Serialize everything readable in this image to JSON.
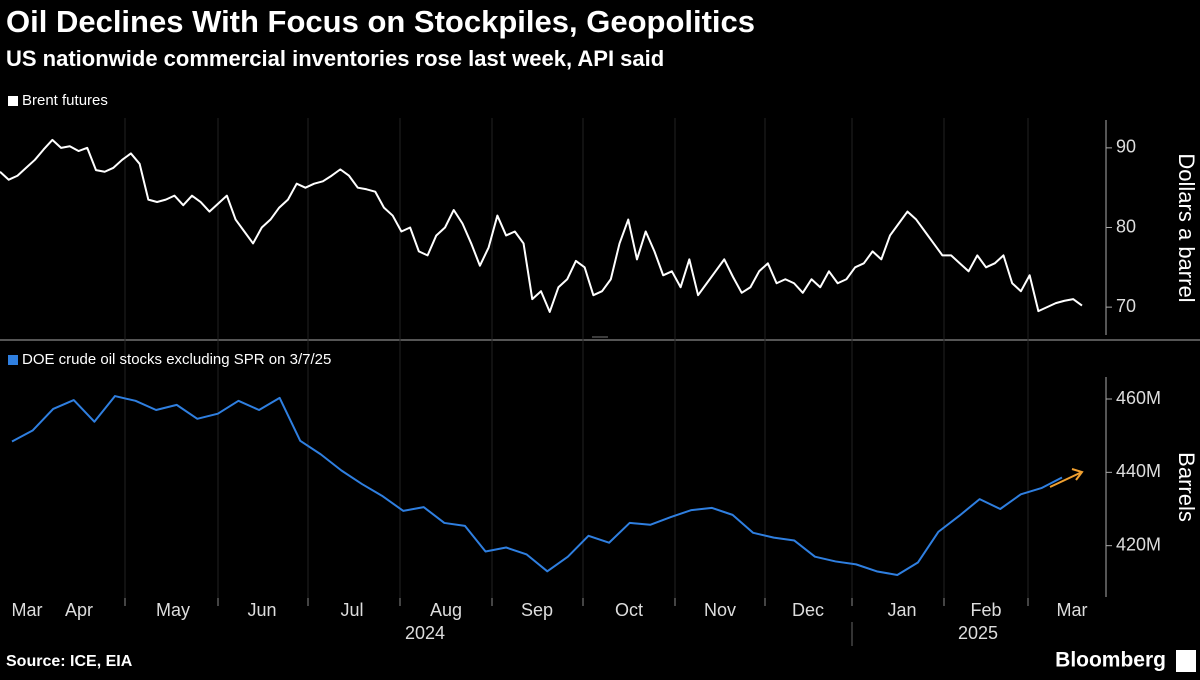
{
  "title": "Oil Declines With Focus on Stockpiles, Geopolitics",
  "subtitle": "US nationwide commercial inventories rose last week, API said",
  "x_axis": {
    "months": [
      "Mar",
      "Apr",
      "May",
      "Jun",
      "Jul",
      "Aug",
      "Sep",
      "Oct",
      "Nov",
      "Dec",
      "Jan",
      "Feb",
      "Mar"
    ],
    "years": [
      "2024",
      "2025"
    ]
  },
  "source": "Source: ICE, EIA",
  "brand": "Bloomberg",
  "chart_data": [
    {
      "type": "line",
      "y_label": "Dollars a barrel",
      "series": [
        {
          "name": "Brent futures",
          "color": "#ffffff",
          "values": [
            87.0,
            86.0,
            86.5,
            87.5,
            88.5,
            89.8,
            91.0,
            90.0,
            90.2,
            89.6,
            90.0,
            87.2,
            87.0,
            87.5,
            88.5,
            89.3,
            88.0,
            83.5,
            83.2,
            83.5,
            84.0,
            82.8,
            84.0,
            83.2,
            82.0,
            83.0,
            84.0,
            81.0,
            79.5,
            78.0,
            80.0,
            81.0,
            82.5,
            83.5,
            85.5,
            85.0,
            85.5,
            85.8,
            86.5,
            87.3,
            86.5,
            85.0,
            84.8,
            84.5,
            82.5,
            81.5,
            79.5,
            80.0,
            77.0,
            76.5,
            79.0,
            80.0,
            82.2,
            80.5,
            78.0,
            75.2,
            77.5,
            81.5,
            79.0,
            79.5,
            78.0,
            71.0,
            72.0,
            69.4,
            72.5,
            73.5,
            75.8,
            75.0,
            71.5,
            72.0,
            73.5,
            78.0,
            81.0,
            76.0,
            79.5,
            77.0,
            74.0,
            74.5,
            72.5,
            76.0,
            71.5,
            73.0,
            74.5,
            76.0,
            73.8,
            71.8,
            72.5,
            74.5,
            75.5,
            73.0,
            73.5,
            73.0,
            71.8,
            73.5,
            72.5,
            74.5,
            73.0,
            73.5,
            75.0,
            75.5,
            77.0,
            76.0,
            79.0,
            80.5,
            82.0,
            81.0,
            79.5,
            78.0,
            76.5,
            76.5,
            75.5,
            74.5,
            76.5,
            75.0,
            75.5,
            76.5,
            73.0,
            72.0,
            74.0,
            69.5,
            70.0,
            70.5,
            70.8,
            71.0,
            70.2
          ]
        }
      ],
      "ylim": [
        66.5,
        93.5
      ],
      "yticks": [
        70,
        80,
        90
      ]
    },
    {
      "type": "line",
      "y_label": "Barrels",
      "series": [
        {
          "name": "DOE crude oil stocks excluding SPR on 3/7/25",
          "color": "#2f7fe0",
          "values": [
            448400000,
            451400000,
            457300000,
            459700000,
            453800000,
            460800000,
            459500000,
            457000000,
            458400000,
            454600000,
            456000000,
            459500000,
            457000000,
            460300000,
            448600000,
            444900000,
            440500000,
            436800000,
            433500000,
            429500000,
            430500000,
            426200000,
            425400000,
            418400000,
            419500000,
            417600000,
            413000000,
            417000000,
            422700000,
            420800000,
            426200000,
            425700000,
            427800000,
            429700000,
            430300000,
            428400000,
            423500000,
            422200000,
            421400000,
            417000000,
            415700000,
            414900000,
            413000000,
            412000000,
            415400000,
            423800000,
            428100000,
            432700000,
            430000000,
            434000000,
            435700000,
            438600000
          ]
        }
      ],
      "ylim": [
        406000000,
        466000000
      ],
      "yticks": [
        {
          "value": 420000000,
          "label": "420M"
        },
        {
          "value": 440000000,
          "label": "440M"
        },
        {
          "value": 460000000,
          "label": "460M"
        }
      ]
    }
  ]
}
